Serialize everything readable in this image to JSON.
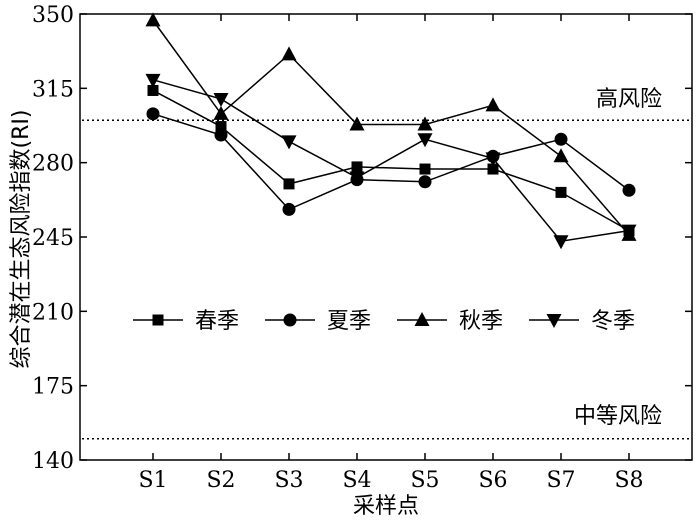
{
  "chart_data": {
    "type": "line",
    "xlabel": "采样点",
    "ylabel": "综合潜在生态风险指数(RI)",
    "categories": [
      "S1",
      "S2",
      "S3",
      "S4",
      "S5",
      "S6",
      "S7",
      "S8"
    ],
    "ylim": [
      140,
      350
    ],
    "yticks": [
      140,
      175,
      210,
      245,
      280,
      315,
      350
    ],
    "grid": false,
    "legend_position": "center",
    "series": [
      {
        "name": "春季",
        "marker": "square",
        "values": [
          314,
          297,
          270,
          278,
          277,
          277,
          266,
          248
        ]
      },
      {
        "name": "夏季",
        "marker": "circle",
        "values": [
          303,
          293,
          258,
          272,
          271,
          283,
          291,
          267
        ]
      },
      {
        "name": "秋季",
        "marker": "triangle-up",
        "values": [
          347,
          303,
          331,
          298,
          298,
          307,
          283,
          246
        ]
      },
      {
        "name": "冬季",
        "marker": "triangle-down",
        "values": [
          319,
          310,
          290,
          273,
          291,
          282,
          243,
          248
        ]
      }
    ],
    "reference_lines": [
      {
        "label": "高风险",
        "value": 300
      },
      {
        "label": "中等风险",
        "value": 150
      }
    ]
  }
}
